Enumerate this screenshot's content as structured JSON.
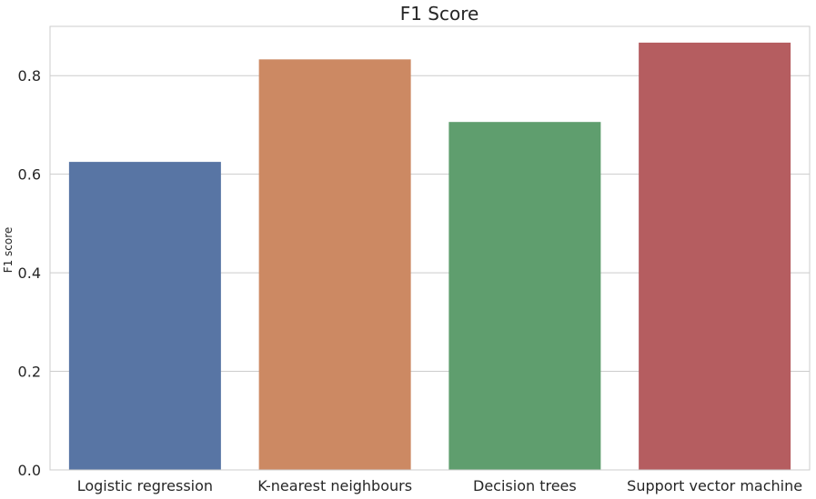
{
  "chart_data": {
    "type": "bar",
    "title": "F1 Score",
    "xlabel": "",
    "ylabel": "F1 score",
    "categories": [
      "Logistic regression",
      "K-nearest neighbours",
      "Decision trees",
      "Support vector machine"
    ],
    "values": [
      0.625,
      0.833,
      0.706,
      0.867
    ],
    "colors": [
      "#5875a4",
      "#cc8963",
      "#5f9e6e",
      "#b55d60"
    ],
    "ylim": [
      0,
      0.9
    ],
    "yticks": [
      0.0,
      0.2,
      0.4,
      0.6,
      0.8
    ],
    "ytick_labels": [
      "0.0",
      "0.2",
      "0.4",
      "0.6",
      "0.8"
    ],
    "grid": "horizontal",
    "legend": "none"
  }
}
